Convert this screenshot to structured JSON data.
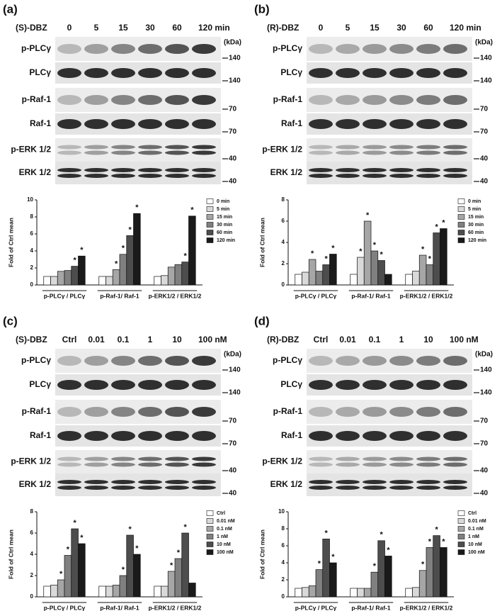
{
  "panels": [
    {
      "label": "(a)",
      "drug": "(S)-DBZ",
      "lanes": [
        "0",
        "5",
        "15",
        "30",
        "60",
        "120 min"
      ],
      "kda": "(kDa)",
      "rows": [
        {
          "name": "p-PLCγ",
          "marker": "140"
        },
        {
          "name": "PLCγ",
          "marker": "140"
        },
        {
          "name": "p-Raf-1",
          "marker": "70"
        },
        {
          "name": "Raf-1",
          "marker": "70"
        },
        {
          "name": "p-ERK 1/2",
          "marker": "40"
        },
        {
          "name": "ERK 1/2",
          "marker": "40"
        }
      ]
    },
    {
      "label": "(b)",
      "drug": "(R)-DBZ",
      "lanes": [
        "0",
        "5",
        "15",
        "30",
        "60",
        "120 min"
      ],
      "kda": "(kDa)",
      "rows": [
        {
          "name": "p-PLCγ",
          "marker": "140"
        },
        {
          "name": "PLCγ",
          "marker": "140"
        },
        {
          "name": "p-Raf-1",
          "marker": "70"
        },
        {
          "name": "Raf-1",
          "marker": "70"
        },
        {
          "name": "p-ERK 1/2",
          "marker": "40"
        },
        {
          "name": "ERK 1/2",
          "marker": "40"
        }
      ]
    },
    {
      "label": "(c)",
      "drug": "(S)-DBZ",
      "lanes": [
        "Ctrl",
        "0.01",
        "0.1",
        "1",
        "10",
        "100 nM"
      ],
      "kda": "(kDa)",
      "rows": [
        {
          "name": "p-PLCγ",
          "marker": "140"
        },
        {
          "name": "PLCγ",
          "marker": "140"
        },
        {
          "name": "p-Raf-1",
          "marker": "70"
        },
        {
          "name": "Raf-1",
          "marker": "70"
        },
        {
          "name": "p-ERK 1/2",
          "marker": "40"
        },
        {
          "name": "ERK 1/2",
          "marker": "40"
        }
      ]
    },
    {
      "label": "(d)",
      "drug": "(R)-DBZ",
      "lanes": [
        "Ctrl",
        "0.01",
        "0.1",
        "1",
        "10",
        "100 nM"
      ],
      "kda": "(kDa)",
      "rows": [
        {
          "name": "p-PLCγ",
          "marker": "140"
        },
        {
          "name": "PLCγ",
          "marker": "140"
        },
        {
          "name": "p-Raf-1",
          "marker": "70"
        },
        {
          "name": "Raf-1",
          "marker": "70"
        },
        {
          "name": "p-ERK 1/2",
          "marker": "40"
        },
        {
          "name": "ERK 1/2",
          "marker": "40"
        }
      ]
    }
  ],
  "chart_data": [
    {
      "type": "bar",
      "ylabel": "Fold of Ctrl mean",
      "categories": [
        "p-PLCγ / PLCγ",
        "p-Raf-1/ Raf-1",
        "p-ERK1/2 / ERK1/2"
      ],
      "ylim": [
        0,
        10
      ],
      "yticks": [
        0,
        2,
        4,
        6,
        8,
        10
      ],
      "series": [
        {
          "name": "0 min",
          "color": "#ffffff",
          "values": [
            1,
            1,
            1
          ],
          "stars": [
            null,
            null,
            null
          ]
        },
        {
          "name": "5 min",
          "color": "#d9d9d9",
          "values": [
            1,
            1,
            1.1
          ],
          "stars": [
            null,
            null,
            null
          ]
        },
        {
          "name": "15 min",
          "color": "#a6a6a6",
          "values": [
            1.6,
            1.8,
            2.1
          ],
          "stars": [
            null,
            "*",
            null
          ]
        },
        {
          "name": "30 min",
          "color": "#808080",
          "values": [
            1.7,
            3.6,
            2.4
          ],
          "stars": [
            null,
            "*",
            null
          ]
        },
        {
          "name": "60 min",
          "color": "#4d4d4d",
          "values": [
            2.2,
            5.8,
            2.7
          ],
          "stars": [
            "*",
            "*",
            "*"
          ]
        },
        {
          "name": "120 min",
          "color": "#1a1a1a",
          "values": [
            3.4,
            8.4,
            8.1
          ],
          "stars": [
            "*",
            "*",
            "*"
          ]
        }
      ]
    },
    {
      "type": "bar",
      "ylabel": "Fold of Ctrl mean",
      "categories": [
        "p-PLCγ / PLCγ",
        "p-Raf-1/ Raf-1",
        "p-ERK1/2 / ERK1/2"
      ],
      "ylim": [
        0,
        8
      ],
      "yticks": [
        0,
        2,
        4,
        6,
        8
      ],
      "series": [
        {
          "name": "0 min",
          "color": "#ffffff",
          "values": [
            1,
            1,
            1
          ],
          "stars": [
            null,
            null,
            null
          ]
        },
        {
          "name": "5 min",
          "color": "#d9d9d9",
          "values": [
            1.2,
            2.6,
            1.3
          ],
          "stars": [
            null,
            "*",
            null
          ]
        },
        {
          "name": "15 min",
          "color": "#a6a6a6",
          "values": [
            2.4,
            6,
            2.8
          ],
          "stars": [
            "*",
            "*",
            "*"
          ]
        },
        {
          "name": "30 min",
          "color": "#808080",
          "values": [
            1.3,
            3.2,
            1.9
          ],
          "stars": [
            null,
            "*",
            "*"
          ]
        },
        {
          "name": "60 min",
          "color": "#4d4d4d",
          "values": [
            1.9,
            2.3,
            4.9
          ],
          "stars": [
            "*",
            "*",
            "*"
          ]
        },
        {
          "name": "120 min",
          "color": "#1a1a1a",
          "values": [
            2.9,
            1,
            5.3
          ],
          "stars": [
            "*",
            null,
            "*"
          ]
        }
      ]
    },
    {
      "type": "bar",
      "ylabel": "Fold of Ctrl mean",
      "categories": [
        "p-PLCγ / PLCγ",
        "p-Raf-1/ Raf-1",
        "p-ERK1/2 / ERK1/2"
      ],
      "ylim": [
        0,
        8
      ],
      "yticks": [
        0,
        2,
        4,
        6,
        8
      ],
      "series": [
        {
          "name": "Ctrl",
          "color": "#ffffff",
          "values": [
            1,
            1,
            1
          ],
          "stars": [
            null,
            null,
            null
          ]
        },
        {
          "name": "0.01 nM",
          "color": "#d9d9d9",
          "values": [
            1.1,
            1,
            1
          ],
          "stars": [
            null,
            null,
            null
          ]
        },
        {
          "name": "0.1 nM",
          "color": "#a6a6a6",
          "values": [
            1.6,
            1.1,
            2.4
          ],
          "stars": [
            "*",
            null,
            "*"
          ]
        },
        {
          "name": "1 nM",
          "color": "#808080",
          "values": [
            3.9,
            2,
            3.6
          ],
          "stars": [
            "*",
            "*",
            "*"
          ]
        },
        {
          "name": "10 nM",
          "color": "#4d4d4d",
          "values": [
            6.4,
            5.8,
            6
          ],
          "stars": [
            "*",
            "*",
            "*"
          ]
        },
        {
          "name": "100 nM",
          "color": "#1a1a1a",
          "values": [
            5,
            4,
            1.3
          ],
          "stars": [
            "*",
            "*",
            null
          ]
        }
      ]
    },
    {
      "type": "bar",
      "ylabel": "Fold of Ctrl mean",
      "categories": [
        "p-PLCγ / PLCγ",
        "p-Raf-1/ Raf-1",
        "p-ERK1/2 / ERK1/2"
      ],
      "ylim": [
        0,
        10
      ],
      "yticks": [
        0,
        2,
        4,
        6,
        8,
        10
      ],
      "series": [
        {
          "name": "Ctrl",
          "color": "#ffffff",
          "values": [
            1,
            1,
            1
          ],
          "stars": [
            null,
            null,
            null
          ]
        },
        {
          "name": "0.01 nM",
          "color": "#d9d9d9",
          "values": [
            1.1,
            1,
            1.1
          ],
          "stars": [
            null,
            null,
            null
          ]
        },
        {
          "name": "0.1 nM",
          "color": "#a6a6a6",
          "values": [
            1.3,
            1,
            3.1
          ],
          "stars": [
            null,
            null,
            "*"
          ]
        },
        {
          "name": "1 nM",
          "color": "#808080",
          "values": [
            3.2,
            2.9,
            5.8
          ],
          "stars": [
            "*",
            "*",
            "*"
          ]
        },
        {
          "name": "10 nM",
          "color": "#4d4d4d",
          "values": [
            6.8,
            6.6,
            7.2
          ],
          "stars": [
            "*",
            "*",
            "*"
          ]
        },
        {
          "name": "100 nM",
          "color": "#1a1a1a",
          "values": [
            4,
            4.8,
            5.8
          ],
          "stars": [
            "*",
            "*",
            "*"
          ]
        }
      ]
    }
  ]
}
